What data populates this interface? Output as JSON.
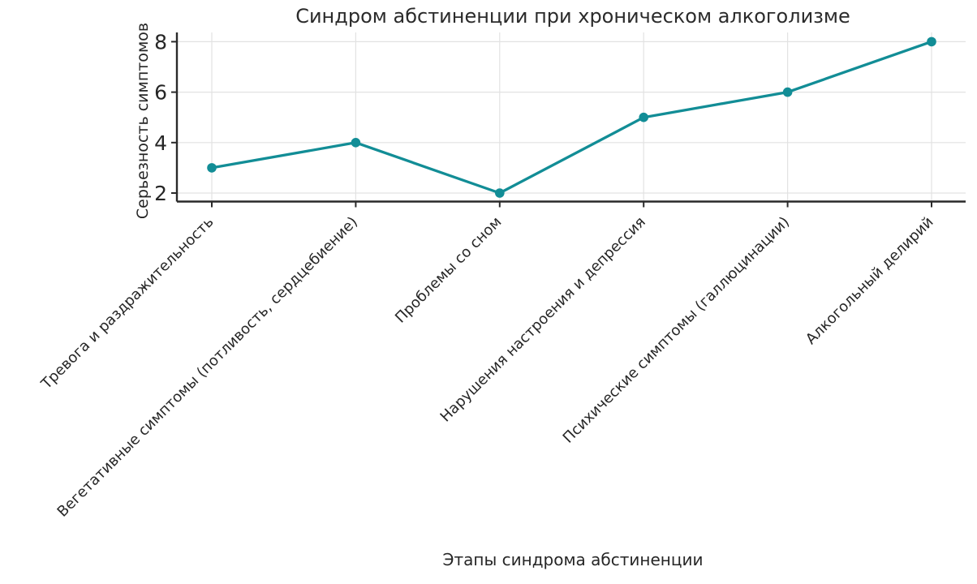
{
  "chart_data": {
    "type": "line",
    "title": "Синдром абстиненции при хроническом алкоголизме",
    "xlabel": "Этапы синдрома абстиненции",
    "ylabel": "Серьезность симптомов",
    "categories": [
      "Тревога и раздражительность",
      "Вегетативные симптомы (потливость, сердцебиение)",
      "Проблемы со сном",
      "Нарушения настроения и депрессия",
      "Психические симптомы (галлюцинации)",
      "Алкогольный делирий"
    ],
    "values": [
      3,
      4,
      2,
      5,
      6,
      8
    ],
    "yticks": [
      2,
      4,
      6,
      8
    ],
    "ylim": [
      1.66,
      8.4
    ],
    "grid": true,
    "legend": null,
    "x_tick_rotation_deg": 45,
    "colors": {
      "line": "#128d96",
      "marker": "#128d96",
      "grid": "#e2e2e2",
      "axis": "#2a2a2a",
      "text": "#262626"
    }
  }
}
